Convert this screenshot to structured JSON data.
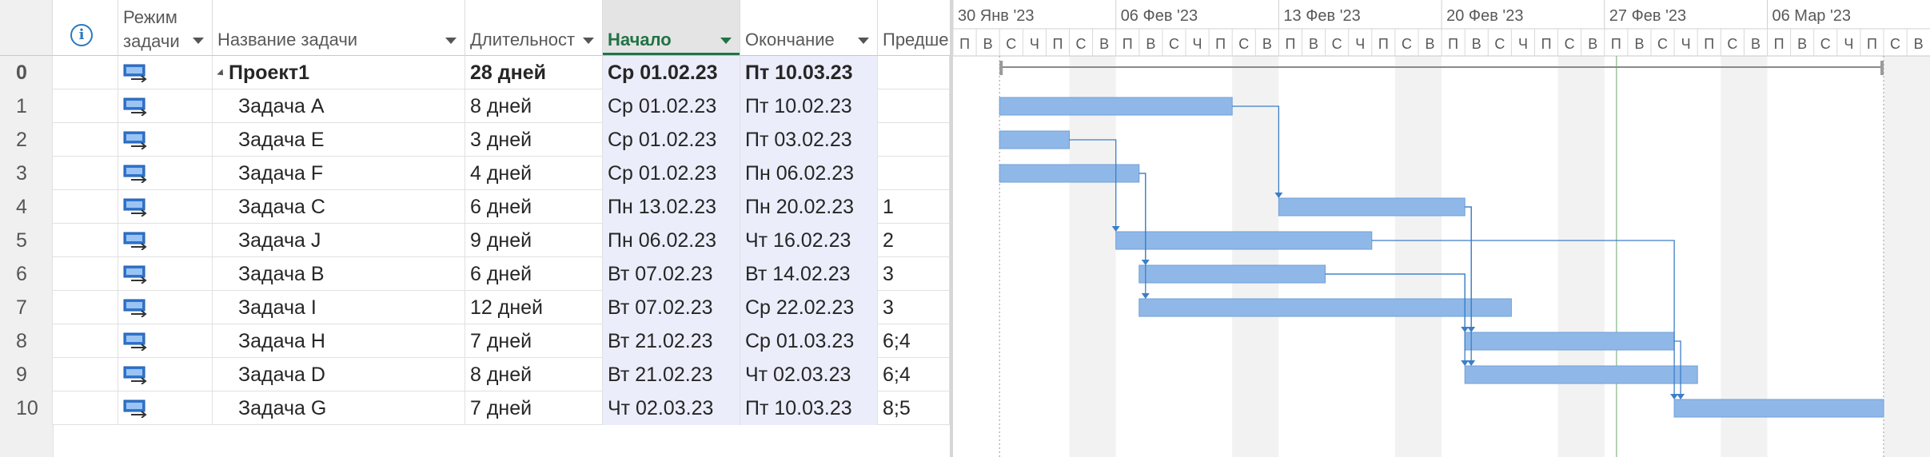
{
  "columns": {
    "mode_line1": "Режим",
    "mode_line2": "задачи",
    "name": "Название задачи",
    "duration": "Длительност",
    "start": "Начало",
    "finish": "Окончание",
    "pred": "Предше"
  },
  "rows": [
    {
      "id": "0",
      "name": "Проект1",
      "duration": "28 дней",
      "start": "Ср 01.02.23",
      "finish": "Пт 10.03.23",
      "pred": "",
      "summary": true
    },
    {
      "id": "1",
      "name": "Задача A",
      "duration": "8 дней",
      "start": "Ср 01.02.23",
      "finish": "Пт 10.02.23",
      "pred": ""
    },
    {
      "id": "2",
      "name": "Задача E",
      "duration": "3 дней",
      "start": "Ср 01.02.23",
      "finish": "Пт 03.02.23",
      "pred": ""
    },
    {
      "id": "3",
      "name": "Задача F",
      "duration": "4 дней",
      "start": "Ср 01.02.23",
      "finish": "Пн 06.02.23",
      "pred": ""
    },
    {
      "id": "4",
      "name": "Задача C",
      "duration": "6 дней",
      "start": "Пн 13.02.23",
      "finish": "Пн 20.02.23",
      "pred": "1"
    },
    {
      "id": "5",
      "name": "Задача J",
      "duration": "9 дней",
      "start": "Пн 06.02.23",
      "finish": "Чт 16.02.23",
      "pred": "2"
    },
    {
      "id": "6",
      "name": "Задача B",
      "duration": "6 дней",
      "start": "Вт 07.02.23",
      "finish": "Вт 14.02.23",
      "pred": "3"
    },
    {
      "id": "7",
      "name": "Задача I",
      "duration": "12 дней",
      "start": "Вт 07.02.23",
      "finish": "Ср 22.02.23",
      "pred": "3"
    },
    {
      "id": "8",
      "name": "Задача H",
      "duration": "7 дней",
      "start": "Вт 21.02.23",
      "finish": "Ср 01.03.23",
      "pred": "6;4"
    },
    {
      "id": "9",
      "name": "Задача D",
      "duration": "8 дней",
      "start": "Вт 21.02.23",
      "finish": "Чт 02.03.23",
      "pred": "6;4"
    },
    {
      "id": "10",
      "name": "Задача G",
      "duration": "7 дней",
      "start": "Чт 02.03.23",
      "finish": "Пт 10.03.23",
      "pred": "8;5"
    }
  ],
  "timescale": {
    "weeks": [
      "30 Янв '23",
      "06 Фев '23",
      "13 Фев '23",
      "20 Фев '23",
      "27 Фев '23",
      "06 Мар '23"
    ],
    "day_letters": [
      "П",
      "В",
      "С",
      "Ч",
      "П",
      "С",
      "В"
    ]
  },
  "gantt": {
    "timeline_start": "2023-01-30",
    "days_visible": 42,
    "summary": {
      "start": "2023-02-01",
      "finish": "2023-03-10"
    },
    "bars": [
      {
        "row": 1,
        "start": "2023-02-01",
        "finish": "2023-02-10"
      },
      {
        "row": 2,
        "start": "2023-02-01",
        "finish": "2023-02-03"
      },
      {
        "row": 3,
        "start": "2023-02-01",
        "finish": "2023-02-06"
      },
      {
        "row": 4,
        "start": "2023-02-13",
        "finish": "2023-02-20"
      },
      {
        "row": 5,
        "start": "2023-02-06",
        "finish": "2023-02-16"
      },
      {
        "row": 6,
        "start": "2023-02-07",
        "finish": "2023-02-14"
      },
      {
        "row": 7,
        "start": "2023-02-07",
        "finish": "2023-02-22"
      },
      {
        "row": 8,
        "start": "2023-02-21",
        "finish": "2023-03-01"
      },
      {
        "row": 9,
        "start": "2023-02-21",
        "finish": "2023-03-02"
      },
      {
        "row": 10,
        "start": "2023-03-02",
        "finish": "2023-03-10"
      }
    ],
    "links": [
      {
        "from": 1,
        "to": 4
      },
      {
        "from": 2,
        "to": 5
      },
      {
        "from": 3,
        "to": 6
      },
      {
        "from": 3,
        "to": 7
      },
      {
        "from": 6,
        "to": 8
      },
      {
        "from": 4,
        "to": 8
      },
      {
        "from": 6,
        "to": 9
      },
      {
        "from": 4,
        "to": 9
      },
      {
        "from": 8,
        "to": 10
      },
      {
        "from": 5,
        "to": 10
      }
    ],
    "colors": {
      "bar": "#8fb8e8",
      "bar_border": "#6f9fd6",
      "link": "#3c7ec8",
      "weekend": "#f2f2f2",
      "today": "#6aa86a"
    }
  }
}
